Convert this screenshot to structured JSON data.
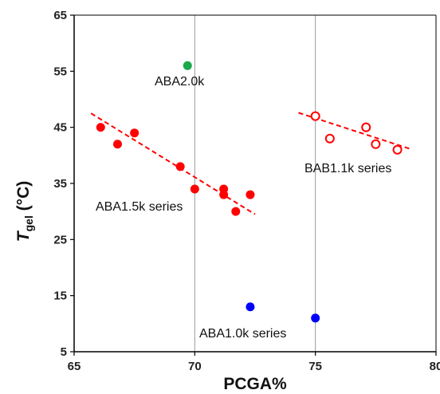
{
  "chart_data": {
    "type": "scatter",
    "xlabel": "PCGA%",
    "ylabel": {
      "main": "T",
      "sub": "gel",
      "unit": " (°C)"
    },
    "xlim": [
      65,
      80
    ],
    "ylim": [
      5,
      65
    ],
    "xticks": [
      65,
      70,
      75,
      80
    ],
    "yticks": [
      5,
      15,
      25,
      35,
      45,
      55,
      65
    ],
    "grid": {
      "vertical": true,
      "horizontal": false
    },
    "colors": {
      "aba15": "#ff0000",
      "bab11": "#ff0000",
      "aba20": "#1aa84a",
      "aba10": "#0000ff",
      "trend": "#ff0000"
    },
    "series": [
      {
        "name": "ABA1.5k series",
        "marker": "filled-circle",
        "color": "#ff0000",
        "points": [
          [
            66.1,
            45
          ],
          [
            66.8,
            42
          ],
          [
            67.5,
            44
          ],
          [
            69.4,
            38
          ],
          [
            70.0,
            34
          ],
          [
            71.2,
            34
          ],
          [
            71.2,
            33
          ],
          [
            71.7,
            30
          ],
          [
            72.3,
            33
          ]
        ],
        "trendline": [
          [
            65.7,
            47.5
          ],
          [
            72.5,
            29.5
          ]
        ]
      },
      {
        "name": "BAB1.1k series",
        "marker": "open-circle",
        "color": "#ff0000",
        "points": [
          [
            75.0,
            47
          ],
          [
            75.6,
            43
          ],
          [
            77.1,
            45
          ],
          [
            77.5,
            42
          ],
          [
            78.4,
            41
          ]
        ],
        "trendline": [
          [
            74.3,
            47.6
          ],
          [
            78.9,
            41.2
          ]
        ]
      },
      {
        "name": "ABA2.0k",
        "marker": "filled-circle",
        "color": "#1aa84a",
        "points": [
          [
            69.7,
            56
          ]
        ]
      },
      {
        "name": "ABA1.0k series",
        "marker": "filled-circle",
        "color": "#0000ff",
        "points": [
          [
            72.3,
            13
          ],
          [
            75.0,
            11
          ]
        ]
      }
    ],
    "annotations": [
      "ABA2.0k",
      "ABA1.5k series",
      "BAB1.1k series",
      "ABA1.0k series"
    ]
  }
}
